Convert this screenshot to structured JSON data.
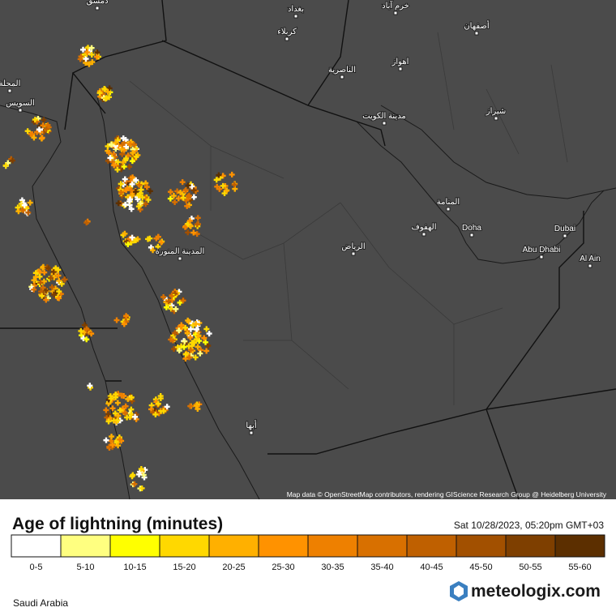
{
  "map": {
    "cities": [
      "دمشق",
      "بغداد",
      "كربلاء",
      "خرم آباد",
      "أصفهان",
      "اهواز",
      "الناصرية",
      "شيراز",
      "مدينة الكويت",
      "المنامة",
      "الهفوف",
      "Doha",
      "Dubai",
      "Abu Dhabi",
      "Al Ain",
      "الرياض",
      "المدينة المنورة",
      "أبها",
      "السويس",
      "المحلة"
    ],
    "attribution": "Map data © OpenStreetMap contributors, rendering GIScience Research Group @ Heidelberg University"
  },
  "legend": {
    "title": "Age of lightning (minutes)",
    "timestamp": "Sat 10/28/2023, 05:20pm GMT+03",
    "items": [
      {
        "label": "0-5",
        "color": "#ffffff"
      },
      {
        "label": "5-10",
        "color": "#ffff80"
      },
      {
        "label": "10-15",
        "color": "#ffff00"
      },
      {
        "label": "15-20",
        "color": "#ffd800"
      },
      {
        "label": "20-25",
        "color": "#ffb000"
      },
      {
        "label": "25-30",
        "color": "#ff9200"
      },
      {
        "label": "30-35",
        "color": "#ee8000"
      },
      {
        "label": "35-40",
        "color": "#d87000"
      },
      {
        "label": "40-45",
        "color": "#bf6000"
      },
      {
        "label": "45-50",
        "color": "#a25000"
      },
      {
        "label": "50-55",
        "color": "#7e3f00"
      },
      {
        "label": "55-60",
        "color": "#5c2f00"
      }
    ]
  },
  "footer": {
    "region": "Saudi Arabia",
    "brand": "meteologix.com"
  }
}
